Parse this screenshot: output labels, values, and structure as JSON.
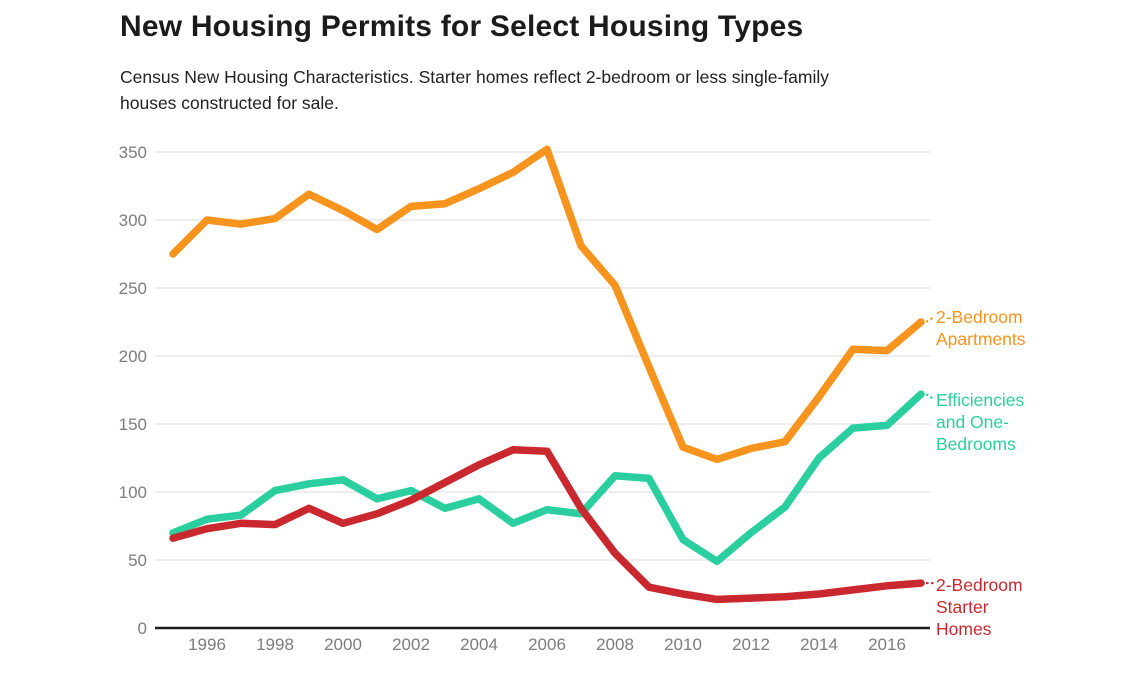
{
  "chart_data": {
    "type": "line",
    "title": "New Housing Permits for Select Housing Types",
    "subtitle_lines": [
      "Census New Housing Characteristics. Starter homes reflect 2-bedroom or less single-family",
      "houses constructed for sale."
    ],
    "x": [
      1995,
      1996,
      1997,
      1998,
      1999,
      2000,
      2001,
      2002,
      2003,
      2004,
      2005,
      2006,
      2007,
      2008,
      2009,
      2010,
      2011,
      2012,
      2013,
      2014,
      2015,
      2016,
      2017
    ],
    "x_tick_labels": [
      "1996",
      "1998",
      "2000",
      "2002",
      "2004",
      "2006",
      "2008",
      "2010",
      "2012",
      "2014",
      "2016"
    ],
    "y_ticks": [
      0,
      50,
      100,
      150,
      200,
      250,
      300,
      350
    ],
    "ylim": [
      0,
      350
    ],
    "grid": true,
    "legend_position": "right-of-line-ends",
    "axis_color": "#1c1c1c",
    "gridline_color": "#e7e7e7",
    "tick_label_color": "#7d7d7d",
    "series": [
      {
        "name": "2-Bedroom Apartments",
        "label_lines": [
          "2-Bedroom",
          "Apartments"
        ],
        "color": "#f7941e",
        "values": [
          275,
          300,
          297,
          301,
          319,
          307,
          293,
          310,
          312,
          323,
          335,
          352,
          281,
          252,
          192,
          133,
          124,
          132,
          137,
          170,
          205,
          204,
          225
        ]
      },
      {
        "name": "Efficiencies and One-Bedrooms",
        "label_lines": [
          "Efficiencies",
          "and One-",
          "Bedrooms"
        ],
        "color": "#2bcf9f",
        "values": [
          70,
          80,
          83,
          101,
          106,
          109,
          95,
          101,
          88,
          95,
          77,
          87,
          84,
          112,
          110,
          65,
          49,
          70,
          89,
          125,
          147,
          149,
          172
        ]
      },
      {
        "name": "2-Bedroom Starter Homes",
        "label_lines": [
          "2-Bedroom",
          "Starter",
          "Homes"
        ],
        "color": "#c9292e",
        "values": [
          66,
          73,
          77,
          76,
          88,
          77,
          84,
          94,
          107,
          120,
          131,
          130,
          88,
          55,
          30,
          25,
          21,
          22,
          23,
          25,
          28,
          31,
          33
        ]
      }
    ]
  }
}
